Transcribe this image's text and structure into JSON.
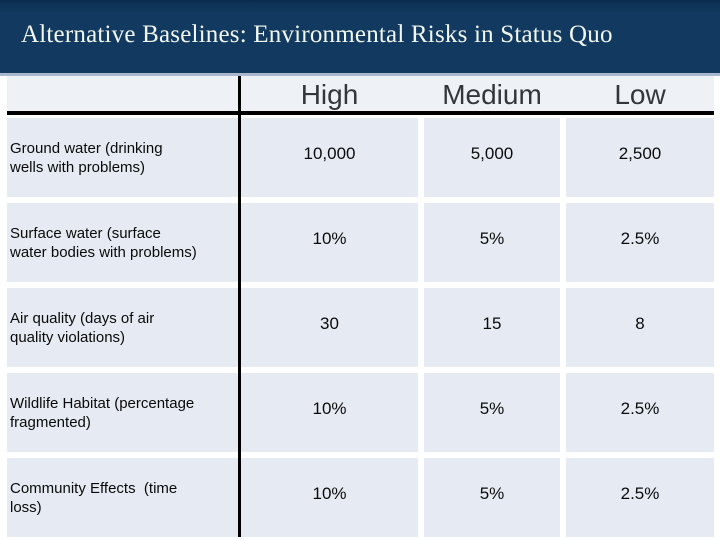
{
  "slide": {
    "title": "Alternative Baselines: Environmental Risks in Status Quo"
  },
  "table": {
    "columns": [
      "High",
      "Medium",
      "Low"
    ],
    "rows": [
      {
        "label": "Ground water (drinking\nwells with problems)",
        "high": "10,000",
        "medium": "5,000",
        "low": "2,500"
      },
      {
        "label": "Surface water (surface\nwater bodies with problems)",
        "high": "10%",
        "medium": "5%",
        "low": "2.5%"
      },
      {
        "label": "Air quality (days of air\nquality violations)",
        "high": "30",
        "medium": "15",
        "low": "8"
      },
      {
        "label": "Wildlife Habitat (percentage\nfragmented)",
        "high": "10%",
        "medium": "5%",
        "low": "2.5%"
      },
      {
        "label": "Community Effects  (time\nloss)",
        "high": "10%",
        "medium": "5%",
        "low": "2.5%"
      }
    ]
  },
  "colors": {
    "band_navy": "#123a61",
    "band_edge": "#a9b8cc",
    "header_bg": "#eef1f6",
    "cell_bg": "#e6ebf3",
    "title_text": "#f1f7ef",
    "header_text": "#33373c",
    "line": "#000000"
  }
}
